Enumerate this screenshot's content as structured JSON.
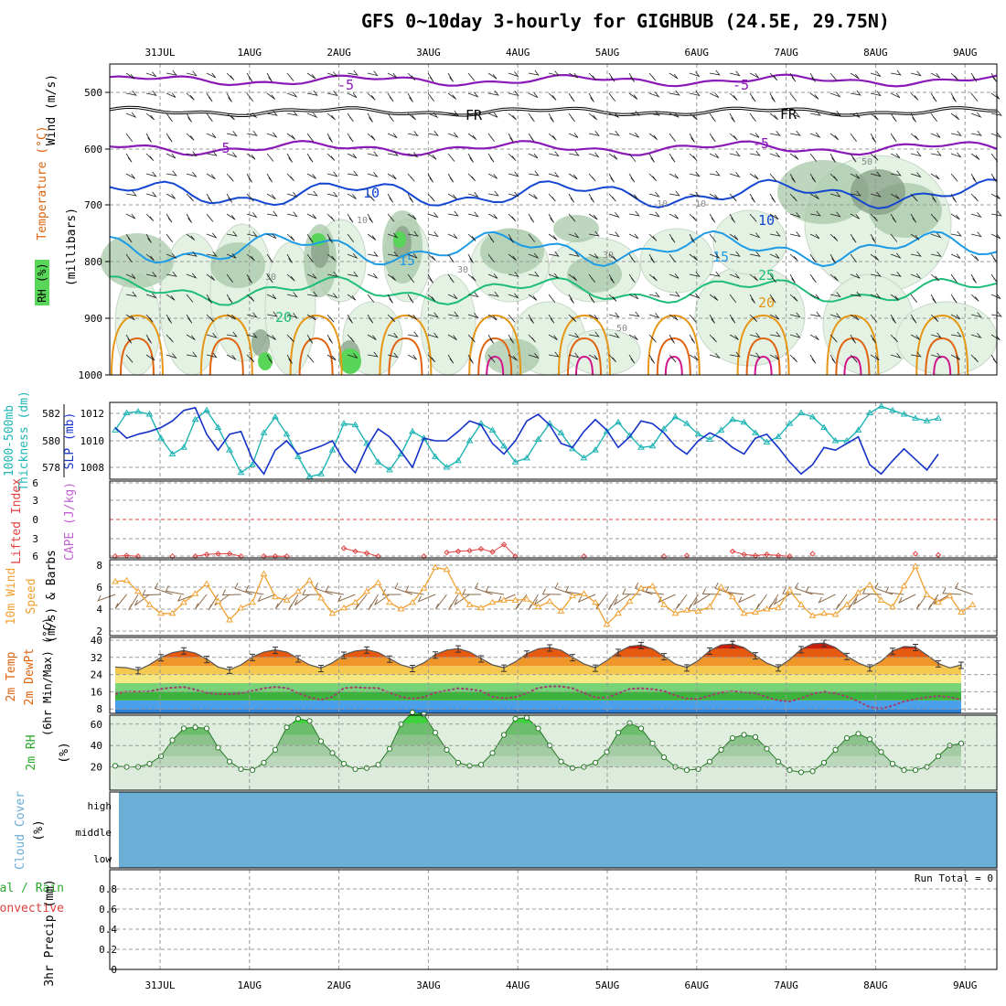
{
  "title": "GFS 0~10day 3-hourly for GIGHBUB (24.5E, 29.75N)",
  "days": [
    "31JUL",
    "1AUG",
    "2AUG",
    "3AUG",
    "4AUG",
    "5AUG",
    "6AUG",
    "7AUG",
    "8AUG",
    "9AUG"
  ],
  "colors": {
    "purple": "#8a1ab8",
    "black": "#000000",
    "blue": "#1446d2",
    "lightblue": "#1e9be6",
    "green": "#1ebe78",
    "orange": "#e69614",
    "darkorange": "#e06410",
    "magenta": "#d2148c",
    "rh_light": "#e3f2e3",
    "rh_mid": "#a8c8a8",
    "rh_dark": "#7f9a7f",
    "rh_bright": "#59d659",
    "thickness": "#1fb4b4",
    "slp": "#1432c8",
    "lifted": "#e04040",
    "cape": "#c060d0",
    "wind10": "#f0a030",
    "barb10": "#8b6a4a",
    "cloud": "#6baed6"
  },
  "panels": {
    "upper": {
      "ylabels": [
        "Wind (m/s)",
        "Temperature (°C)",
        "RH (%)",
        "(millibars)"
      ],
      "ticks": [
        "500",
        "600",
        "700",
        "800",
        "900",
        "1000"
      ],
      "contour_labels": [
        "-5",
        "-5",
        "FR",
        "FR",
        "5",
        "-5",
        "10",
        "10",
        "15",
        "15",
        "20",
        "25",
        "20",
        "10",
        "30",
        "30",
        "50",
        "10",
        "10",
        "30",
        "50"
      ]
    },
    "slp": {
      "ylabels": [
        "1000-500mb",
        "Thickness (dm)",
        "SLP (mb)"
      ],
      "left_ticks": [
        "582",
        "580",
        "578"
      ],
      "right_ticks": [
        "1012",
        "1010",
        "1008"
      ]
    },
    "li": {
      "ylabels": [
        "Lifted Index",
        "CAPE (J/kg)"
      ],
      "ticks": [
        "6",
        "3",
        "0",
        "3",
        "6"
      ]
    },
    "wind": {
      "ylabels": [
        "10m Wind",
        "Speed",
        "(m/s) & Barbs"
      ],
      "ticks": [
        "8",
        "6",
        "4",
        "2"
      ]
    },
    "temp": {
      "ylabels": [
        "2m Temp",
        "2m DewPt",
        "(6hr Min/Max) (°C)"
      ],
      "ticks": [
        "40",
        "32",
        "24",
        "16",
        "8"
      ]
    },
    "rh2": {
      "ylabels": [
        "2m RH",
        "(%)"
      ],
      "ticks": [
        "60",
        "40",
        "20"
      ]
    },
    "cloud": {
      "ylabels": [
        "Cloud Cover",
        "(%)"
      ],
      "ticks": [
        "high",
        "middle",
        "low"
      ]
    },
    "precip": {
      "ylabels": [
        "Total / Rain",
        "Convective",
        "3hr Precip (mm)"
      ],
      "ticks": [
        "0.8",
        "0.6",
        "0.4",
        "0.2",
        "0"
      ],
      "run_total": "Run Total = 0"
    }
  },
  "chart_data": [
    {
      "type": "line",
      "panel": "slp",
      "name": "Thickness",
      "axis": "dm",
      "x_start": "2024-07-30T12Z",
      "step_hours": 3,
      "values": [
        580.8,
        582.1,
        582.2,
        582.0,
        580.2,
        579.0,
        579.5,
        581.6,
        582.3,
        581.0,
        579.3,
        577.6,
        578.2,
        580.6,
        581.8,
        580.5,
        578.8,
        577.3,
        577.5,
        579.3,
        581.3,
        581.2,
        579.8,
        578.4,
        577.8,
        579.0,
        580.7,
        580.2,
        578.8,
        578.0,
        578.5,
        580.0,
        581.3,
        580.8,
        579.6,
        578.4,
        578.7,
        580.1,
        581.3,
        580.6,
        579.4,
        578.7,
        579.3,
        580.7,
        581.4,
        580.4,
        579.5,
        579.6,
        580.9,
        581.8,
        581.3,
        580.5,
        580.1,
        580.8,
        581.6,
        581.4,
        580.6,
        579.9,
        580.3,
        581.3,
        582.1,
        581.8,
        581.0,
        580.0,
        580.0,
        580.8,
        582.1,
        582.6,
        582.3,
        582.0,
        581.7,
        581.5,
        581.7
      ]
    },
    {
      "type": "line",
      "panel": "slp",
      "name": "SLP",
      "axis": "mb",
      "x_start": "2024-07-30T12Z",
      "step_hours": 3,
      "values": [
        1011,
        1010.2,
        1010.5,
        1010.7,
        1011,
        1011.5,
        1012.3,
        1012.5,
        1010.5,
        1009.3,
        1010.5,
        1010.7,
        1008.6,
        1007.5,
        1009.3,
        1010.0,
        1009.0,
        1009.3,
        1009.6,
        1010.0,
        1008.5,
        1007.6,
        1009.5,
        1010.9,
        1010.3,
        1009.2,
        1008.0,
        1010.2,
        1010.0,
        1010.0,
        1010.7,
        1011.5,
        1011.2,
        1009.8,
        1009.0,
        1010.0,
        1011.5,
        1012.0,
        1011.2,
        1009.8,
        1009.5,
        1010.7,
        1011.6,
        1010.8,
        1009.5,
        1010.3,
        1011.5,
        1011.3,
        1010.6,
        1009.6,
        1009.0,
        1010.0,
        1010.6,
        1010.2,
        1009.5,
        1009.0,
        1010.2,
        1010.5,
        1009.5,
        1008.4,
        1007.5,
        1008.2,
        1009.5,
        1009.3,
        1009.8,
        1010.3,
        1008.2,
        1007.5,
        1008.5,
        1009.4,
        1008.6,
        1007.8,
        1009.0
      ]
    },
    {
      "type": "line",
      "panel": "li",
      "name": "Lifted Index",
      "x_start": "2024-07-30T12Z",
      "step_hours": 3,
      "values": [
        6,
        5.9,
        6,
        null,
        null,
        6,
        null,
        6,
        5.7,
        5.6,
        5.6,
        6,
        null,
        6,
        6,
        6,
        null,
        null,
        null,
        null,
        4.7,
        5.2,
        5.5,
        6,
        null,
        null,
        null,
        6,
        null,
        5.4,
        5.2,
        5.1,
        4.8,
        5.3,
        4.1,
        6,
        null,
        null,
        null,
        null,
        null,
        6,
        null,
        null,
        null,
        null,
        null,
        null,
        6,
        null,
        5.9,
        null,
        null,
        null,
        5.2,
        5.7,
        5.9,
        5.7,
        5.9,
        6,
        null,
        5.6,
        null,
        null,
        null,
        null,
        null,
        null,
        null,
        null,
        5.6,
        null,
        5.8
      ]
    },
    {
      "type": "line",
      "panel": "wind",
      "name": "10m Wind Speed",
      "axis": "m/s",
      "x_start": "2024-07-30T12Z",
      "step_hours": 3,
      "values": [
        6.5,
        6.6,
        5.6,
        4.4,
        3.6,
        3.6,
        4.6,
        5.4,
        6.3,
        4.7,
        3.0,
        4.1,
        4.6,
        7.2,
        5.1,
        4.8,
        5.6,
        6.6,
        5.0,
        3.6,
        4.1,
        4.6,
        5.6,
        6.4,
        4.6,
        4.0,
        4.6,
        5.9,
        7.8,
        7.6,
        5.6,
        4.4,
        4.1,
        4.6,
        4.8,
        4.8,
        4.9,
        4.2,
        4.7,
        3.8,
        5.2,
        5.4,
        4.6,
        2.6,
        3.6,
        4.7,
        5.9,
        6.1,
        4.4,
        3.6,
        3.9,
        3.8,
        4.2,
        6.0,
        5.1,
        3.6,
        3.7,
        4.0,
        4.1,
        5.7,
        4.4,
        3.4,
        3.6,
        3.5,
        4.4,
        5.5,
        6.2,
        4.8,
        4.2,
        6.1,
        7.9,
        5.3,
        4.6,
        5.2,
        3.7,
        4.4
      ]
    },
    {
      "type": "area",
      "panel": "temp",
      "name": "2m Temp",
      "axis": "°C",
      "x_start": "2024-07-30T12Z",
      "step_hours": 3,
      "values": [
        27.5,
        27.2,
        26.0,
        28.6,
        32.0,
        34.2,
        35.2,
        34.0,
        31.2,
        27.5,
        26.2,
        28.5,
        32.2,
        34.5,
        35.5,
        34.5,
        31.5,
        28.5,
        27.0,
        29.5,
        33.2,
        35.0,
        35.6,
        34.3,
        31.4,
        28.5,
        27.0,
        29.5,
        33.3,
        35.4,
        36.1,
        34.5,
        31.5,
        28.5,
        27.2,
        29.9,
        33.7,
        36.0,
        36.6,
        35.3,
        32.1,
        29.0,
        27.2,
        30.5,
        34.5,
        37.1,
        37.7,
        36.0,
        32.5,
        28.9,
        27.3,
        30.5,
        35.1,
        37.8,
        38.2,
        36.6,
        32.9,
        29.3,
        27.3,
        31.0,
        35.8,
        38.3,
        38.7,
        36.6,
        32.6,
        29.4,
        27.3,
        30.2,
        35.0,
        37.0,
        36.8,
        33.1,
        29.2,
        27.1,
        28.5
      ]
    },
    {
      "type": "line",
      "panel": "temp",
      "name": "2m DewPt",
      "axis": "°C",
      "x_start": "2024-07-30T12Z",
      "step_hours": 3,
      "values": [
        15.0,
        16.1,
        16.0,
        16.2,
        17.3,
        17.9,
        18.2,
        17.0,
        15.5,
        14.8,
        14.9,
        15.3,
        16.4,
        17.6,
        18.2,
        17.8,
        15.4,
        13.4,
        12.2,
        13.6,
        17.7,
        18.1,
        17.8,
        17.7,
        15.5,
        13.6,
        12.8,
        13.5,
        15.6,
        16.6,
        17.6,
        17.2,
        16.4,
        13.7,
        12.9,
        13.5,
        15.4,
        17.8,
        18.5,
        18.5,
        17.6,
        15.4,
        13.4,
        13.2,
        15.2,
        17.3,
        17.6,
        17.2,
        16.4,
        14.2,
        12.8,
        12.6,
        14.2,
        15.6,
        16.3,
        15.8,
        15.3,
        13.5,
        12.0,
        11.5,
        13.0,
        15.0,
        16.0,
        15.2,
        13.8,
        11.5,
        8.8,
        8.2,
        9.5,
        11.5,
        12.5,
        13.5,
        14.0,
        13.5,
        12.4
      ]
    },
    {
      "type": "area",
      "panel": "rh2",
      "name": "2m RH",
      "axis": "%",
      "x_start": "2024-07-30T12Z",
      "step_hours": 3,
      "values": [
        21,
        20,
        20,
        23,
        30,
        45,
        56,
        57,
        56,
        38,
        25,
        18,
        17,
        24,
        36,
        57,
        65,
        63,
        44,
        33,
        23,
        18,
        19,
        22,
        37,
        60,
        71,
        69,
        52,
        36,
        24,
        21,
        22,
        33,
        50,
        65,
        66,
        56,
        40,
        25,
        19,
        20,
        24,
        34,
        52,
        61,
        56,
        42,
        29,
        20,
        17,
        18,
        25,
        36,
        47,
        50,
        48,
        37,
        25,
        17,
        15,
        16,
        24,
        36,
        47,
        51,
        46,
        34,
        23,
        17,
        17,
        20,
        30,
        40,
        42
      ]
    },
    {
      "type": "table",
      "panel": "cloud",
      "name": "Cloud Cover",
      "levels": [
        "high",
        "middle",
        "low"
      ],
      "values_percent": [
        0,
        0,
        0
      ]
    },
    {
      "type": "bar",
      "panel": "precip",
      "name": "3hr Precip",
      "axis": "mm",
      "ylim": [
        0,
        1
      ],
      "values": [],
      "run_total": 0
    }
  ]
}
